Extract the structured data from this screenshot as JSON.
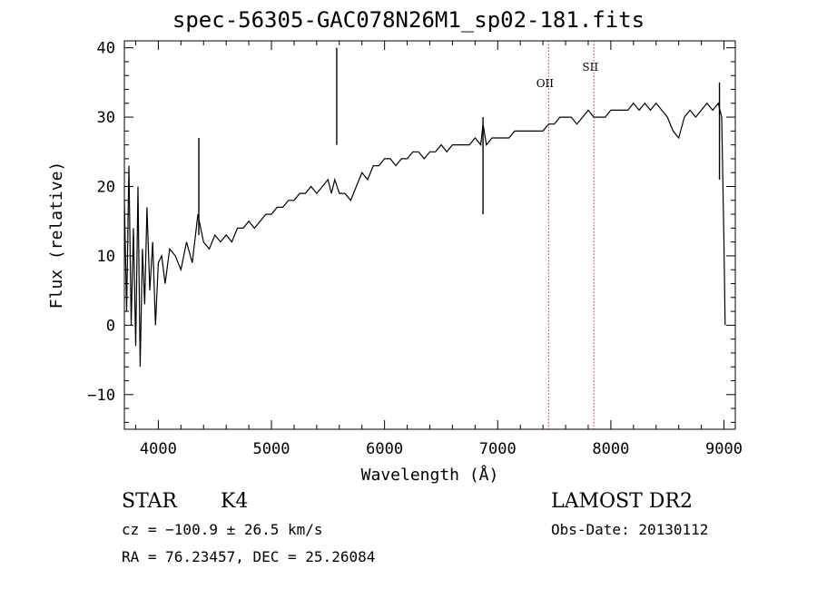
{
  "chart_data": {
    "type": "line",
    "title": "spec-56305-GAC078N26M1_sp02-181.fits",
    "xlabel": "Wavelength (Å)",
    "ylabel": "Flux (relative)",
    "xlim": [
      3700,
      9100
    ],
    "ylim": [
      -15,
      41
    ],
    "xticks": [
      4000,
      5000,
      6000,
      7000,
      8000,
      9000
    ],
    "yticks": [
      -10,
      0,
      10,
      20,
      30,
      40
    ],
    "grid": false,
    "series": [
      {
        "x": [
          3700,
          3720,
          3740,
          3760,
          3780,
          3800,
          3820,
          3840,
          3860,
          3880,
          3900,
          3925,
          3950,
          3975,
          4000,
          4030,
          4060,
          4100,
          4150,
          4200,
          4250,
          4300,
          4350,
          4400,
          4450,
          4500,
          4550,
          4600,
          4650,
          4700,
          4750,
          4800,
          4850,
          4900,
          4950,
          5000,
          5050,
          5100,
          5150,
          5200,
          5250,
          5300,
          5350,
          5400,
          5450,
          5500,
          5530,
          5560,
          5580,
          5600,
          5650,
          5700,
          5750,
          5800,
          5850,
          5900,
          5950,
          6000,
          6050,
          6100,
          6150,
          6200,
          6250,
          6300,
          6350,
          6400,
          6450,
          6500,
          6550,
          6600,
          6650,
          6700,
          6750,
          6800,
          6850,
          6870,
          6900,
          6950,
          7000,
          7050,
          7100,
          7150,
          7200,
          7250,
          7300,
          7350,
          7400,
          7450,
          7500,
          7550,
          7600,
          7650,
          7700,
          7750,
          7800,
          7850,
          7900,
          7950,
          8000,
          8050,
          8100,
          8150,
          8200,
          8250,
          8300,
          8350,
          8400,
          8450,
          8500,
          8550,
          8600,
          8650,
          8700,
          8750,
          8800,
          8850,
          8900,
          8950,
          8980,
          9000,
          9010
        ],
        "y": [
          18,
          2,
          23,
          0,
          14,
          -3,
          20,
          -6,
          11,
          3,
          17,
          5,
          12,
          0,
          9,
          10,
          6,
          11,
          10,
          8,
          12,
          9,
          16,
          12,
          11,
          13,
          12,
          13,
          12,
          14,
          14,
          15,
          14,
          15,
          16,
          16,
          17,
          17,
          18,
          18,
          19,
          19,
          20,
          19,
          20,
          21,
          19,
          21,
          20,
          19,
          19,
          18,
          20,
          22,
          21,
          23,
          23,
          24,
          24,
          23,
          24,
          24,
          25,
          25,
          24,
          25,
          25,
          26,
          25,
          26,
          26,
          26,
          26,
          27,
          26,
          29,
          26,
          27,
          27,
          27,
          27,
          28,
          28,
          28,
          28,
          28,
          28,
          29,
          29,
          30,
          30,
          30,
          29,
          30,
          31,
          30,
          30,
          30,
          31,
          31,
          31,
          31,
          32,
          31,
          32,
          31,
          32,
          31,
          30,
          28,
          27,
          30,
          31,
          30,
          31,
          32,
          31,
          32,
          30,
          12,
          0
        ]
      }
    ],
    "lines": [
      {
        "label": "OII",
        "x": 7450
      },
      {
        "label": "SII",
        "x": 7850
      }
    ],
    "spikes": [
      {
        "x": 5577,
        "y": 40
      },
      {
        "x": 4358,
        "y": 27
      },
      {
        "x": 6870,
        "y": 30
      },
      {
        "x": 8960,
        "y": 35
      }
    ]
  },
  "footer": {
    "object_type": "STAR",
    "subclass": "K4",
    "survey": "LAMOST DR2",
    "redshift": "cz = −100.9 ± 26.5 km/s",
    "obs_date": "Obs-Date: 20130112",
    "coords": "RA =  76.23457, DEC =  25.26084"
  }
}
